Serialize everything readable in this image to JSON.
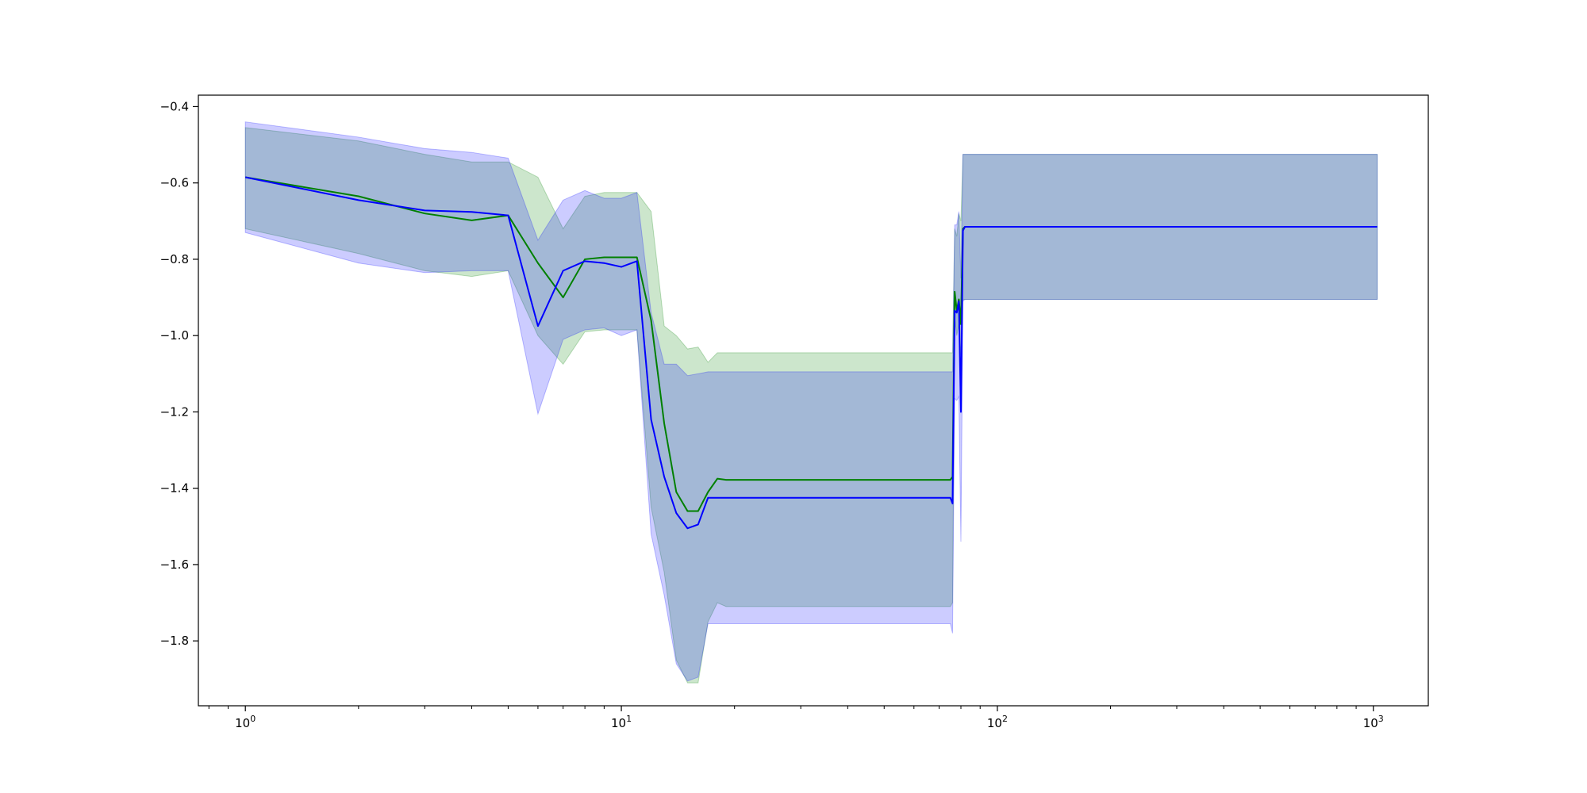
{
  "chart_data": {
    "type": "line",
    "title": "",
    "xlabel": "",
    "ylabel": "",
    "x_scale": "log",
    "xlim": [
      0.75,
      1400
    ],
    "ylim": [
      -1.97,
      -0.37
    ],
    "x_ticks": [
      {
        "value": 1,
        "label_base": "10",
        "label_exp": "0"
      },
      {
        "value": 10,
        "label_base": "10",
        "label_exp": "1"
      },
      {
        "value": 100,
        "label_base": "10",
        "label_exp": "2"
      },
      {
        "value": 1000,
        "label_base": "10",
        "label_exp": "3"
      }
    ],
    "y_ticks": [
      {
        "value": -0.4,
        "label": "-0.4"
      },
      {
        "value": -0.6,
        "label": "-0.6"
      },
      {
        "value": -0.8,
        "label": "-0.8"
      },
      {
        "value": -1.0,
        "label": "-1.0"
      },
      {
        "value": -1.2,
        "label": "-1.2"
      },
      {
        "value": -1.4,
        "label": "-1.4"
      },
      {
        "value": -1.6,
        "label": "-1.6"
      },
      {
        "value": -1.8,
        "label": "-1.8"
      }
    ],
    "grid": false,
    "legend": "none",
    "series": [
      {
        "color": "#008000",
        "band_color": "#008000",
        "band_opacity": 0.2,
        "x": [
          1,
          2,
          3,
          4,
          5,
          6,
          7,
          8,
          9,
          10,
          11,
          12,
          13,
          14,
          15,
          16,
          17,
          18,
          19,
          20,
          75,
          76,
          77,
          78,
          79,
          80,
          81,
          82,
          1024
        ],
        "values": [
          -0.585,
          -0.635,
          -0.68,
          -0.698,
          -0.685,
          -0.81,
          -0.9,
          -0.8,
          -0.795,
          -0.795,
          -0.795,
          -0.96,
          -1.23,
          -1.41,
          -1.46,
          -1.46,
          -1.41,
          -1.375,
          -1.378,
          -1.378,
          -1.378,
          -1.37,
          -0.885,
          -0.935,
          -0.905,
          -0.97,
          -0.72,
          -0.715,
          -0.715
        ],
        "lower": [
          -0.72,
          -0.785,
          -0.83,
          -0.845,
          -0.83,
          -1.0,
          -1.075,
          -0.99,
          -0.985,
          -0.985,
          -0.985,
          -1.45,
          -1.62,
          -1.85,
          -1.91,
          -1.91,
          -1.75,
          -1.7,
          -1.71,
          -1.71,
          -1.71,
          -1.7,
          -0.95,
          -1.0,
          -0.97,
          -1.05,
          -0.905,
          -0.905,
          -0.905
        ],
        "upper": [
          -0.455,
          -0.49,
          -0.525,
          -0.545,
          -0.545,
          -0.585,
          -0.72,
          -0.635,
          -0.625,
          -0.625,
          -0.625,
          -0.675,
          -0.975,
          -1.0,
          -1.035,
          -1.03,
          -1.07,
          -1.045,
          -1.045,
          -1.045,
          -1.045,
          -1.045,
          -0.72,
          -0.74,
          -0.68,
          -0.7,
          -0.525,
          -0.525,
          -0.525
        ]
      },
      {
        "color": "#0000ff",
        "band_color": "#0000ff",
        "band_opacity": 0.2,
        "x": [
          1,
          2,
          3,
          4,
          5,
          6,
          7,
          8,
          9,
          10,
          11,
          12,
          13,
          14,
          15,
          16,
          17,
          18,
          19,
          20,
          75,
          76,
          77,
          78,
          79,
          80,
          81,
          82,
          1024
        ],
        "values": [
          -0.585,
          -0.645,
          -0.672,
          -0.676,
          -0.685,
          -0.975,
          -0.83,
          -0.805,
          -0.81,
          -0.82,
          -0.805,
          -1.22,
          -1.37,
          -1.465,
          -1.505,
          -1.495,
          -1.425,
          -1.425,
          -1.425,
          -1.425,
          -1.425,
          -1.44,
          -0.935,
          -0.94,
          -0.91,
          -1.2,
          -0.725,
          -0.715,
          -0.715
        ],
        "lower": [
          -0.73,
          -0.81,
          -0.835,
          -0.83,
          -0.83,
          -1.205,
          -1.01,
          -0.985,
          -0.98,
          -1.0,
          -0.985,
          -1.52,
          -1.68,
          -1.86,
          -1.905,
          -1.895,
          -1.755,
          -1.755,
          -1.755,
          -1.755,
          -1.755,
          -1.78,
          -1.165,
          -1.17,
          -1.16,
          -1.54,
          -0.91,
          -0.905,
          -0.905
        ],
        "upper": [
          -0.44,
          -0.48,
          -0.51,
          -0.52,
          -0.535,
          -0.75,
          -0.645,
          -0.62,
          -0.64,
          -0.64,
          -0.625,
          -0.94,
          -1.075,
          -1.075,
          -1.105,
          -1.1,
          -1.095,
          -1.095,
          -1.095,
          -1.095,
          -1.095,
          -1.095,
          -0.71,
          -0.71,
          -0.675,
          -0.85,
          -0.525,
          -0.525,
          -0.525
        ]
      }
    ]
  }
}
